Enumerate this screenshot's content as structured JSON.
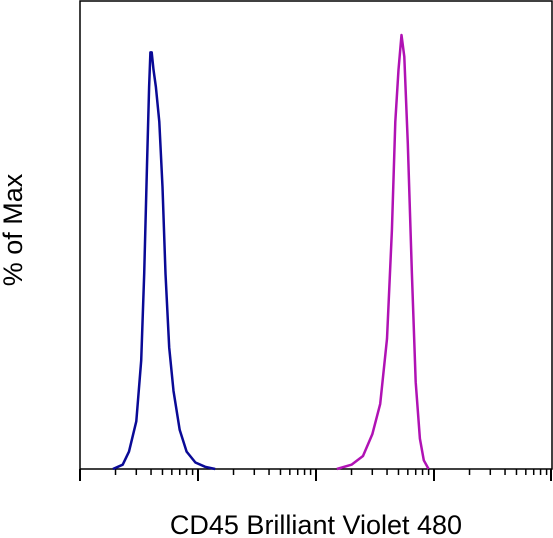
{
  "chart_data": {
    "type": "line",
    "title": "",
    "xlabel": "CD45 Brilliant Violet 480",
    "ylabel": "% of Max",
    "x_scale": "log",
    "xlim": [
      100,
      1000000
    ],
    "ylim": [
      0,
      100
    ],
    "grid": false,
    "legend": "none",
    "tick_labels_shown": false,
    "series": [
      {
        "color": "#0a0a96",
        "x": [
          190,
          230,
          260,
          300,
          330,
          350,
          370,
          385,
          395,
          405,
          420,
          440,
          470,
          500,
          530,
          570,
          620,
          700,
          800,
          950,
          1150,
          1400
        ],
        "y": [
          0,
          1,
          4,
          11,
          25,
          45,
          70,
          88,
          96,
          96,
          92,
          88,
          80,
          65,
          45,
          28,
          18,
          9,
          4,
          1.5,
          0.5,
          0
        ]
      },
      {
        "color": "#b012b4",
        "x": [
          15000,
          20000,
          25000,
          30000,
          35000,
          40000,
          44000,
          47000,
          50000,
          53000,
          56000,
          60000,
          65000,
          70000,
          76000,
          82000,
          90000
        ],
        "y": [
          0,
          1,
          3,
          8,
          15,
          30,
          55,
          80,
          92,
          100,
          95,
          75,
          45,
          20,
          7,
          2,
          0
        ]
      }
    ]
  }
}
